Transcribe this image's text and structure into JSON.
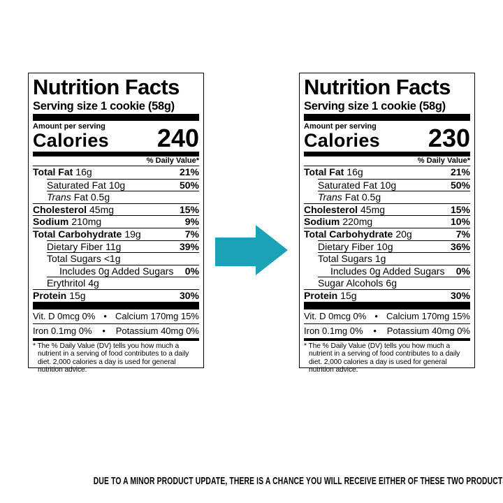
{
  "labels": [
    {
      "title": "Nutrition Facts",
      "serving": "Serving size 1 cookie (58g)",
      "amount_per_serving": "Amount per serving",
      "calories_label": "Calories",
      "calories": "240",
      "dv_header": "% Daily Value*",
      "rows": [
        {
          "name": "Total Fat",
          "amount": "16g",
          "dv": "21%"
        },
        {
          "name": "Saturated Fat",
          "amount": "10g",
          "dv": "50%"
        },
        {
          "name": "Trans",
          "amount": "Fat 0.5g"
        },
        {
          "name": "Cholesterol",
          "amount": "45mg",
          "dv": "15%"
        },
        {
          "name": "Sodium",
          "amount": "210mg",
          "dv": "9%"
        },
        {
          "name": "Total Carbohydrate",
          "amount": "19g",
          "dv": "7%"
        },
        {
          "name": "Dietary Fiber",
          "amount": "11g",
          "dv": "39%"
        },
        {
          "name": "Total Sugars",
          "amount": "<1g"
        },
        {
          "name": "Includes 0g Added Sugars",
          "dv": "0%"
        },
        {
          "name": "Erythritol",
          "amount": "4g"
        },
        {
          "name": "Protein",
          "amount": "15g",
          "dv": "30%"
        }
      ],
      "minerals": [
        [
          "Vit. D 0mcg 0%",
          "Calcium 170mg 15%"
        ],
        [
          "Iron 0.1mg 0%",
          "Potassium 40mg 0%"
        ]
      ],
      "footnote": "* The % Daily Value (DV) tells you how much a nutrient in a serving of food contributes to a daily diet. 2,000 calories a day is used for general nutrition advice."
    },
    {
      "title": "Nutrition Facts",
      "serving": "Serving size 1 cookie (58g)",
      "amount_per_serving": "Amount per serving",
      "calories_label": "Calories",
      "calories": "230",
      "dv_header": "% Daily Value*",
      "rows": [
        {
          "name": "Total Fat",
          "amount": "16g",
          "dv": "21%"
        },
        {
          "name": "Saturated Fat",
          "amount": "10g",
          "dv": "50%"
        },
        {
          "name": "Trans",
          "amount": "Fat 0.5g"
        },
        {
          "name": "Cholesterol",
          "amount": "45mg",
          "dv": "15%"
        },
        {
          "name": "Sodium",
          "amount": "220mg",
          "dv": "10%"
        },
        {
          "name": "Total Carbohydrate",
          "amount": "20g",
          "dv": "7%"
        },
        {
          "name": "Dietary Fiber",
          "amount": "10g",
          "dv": "36%"
        },
        {
          "name": "Total Sugars",
          "amount": "1g"
        },
        {
          "name": "Includes 0g Added Sugars",
          "dv": "0%"
        },
        {
          "name": "Sugar Alcohols",
          "amount": "6g"
        },
        {
          "name": "Protein",
          "amount": "15g",
          "dv": "30%"
        }
      ],
      "minerals": [
        [
          "Vit. D 0mcg 0%",
          "Calcium 170mg 15%"
        ],
        [
          "Iron 0.1mg 0%",
          "Potassium 40mg 0%"
        ]
      ],
      "footnote": "* The % Daily Value (DV) tells you how much a nutrient in a serving of food contributes to a daily diet. 2,000 calories a day is used for general nutrition advice."
    }
  ],
  "notice": "DUE TO A MINOR PRODUCT UPDATE, THERE IS A CHANCE YOU WILL RECEIVE EITHER OF THESE TWO PRODUCTS."
}
